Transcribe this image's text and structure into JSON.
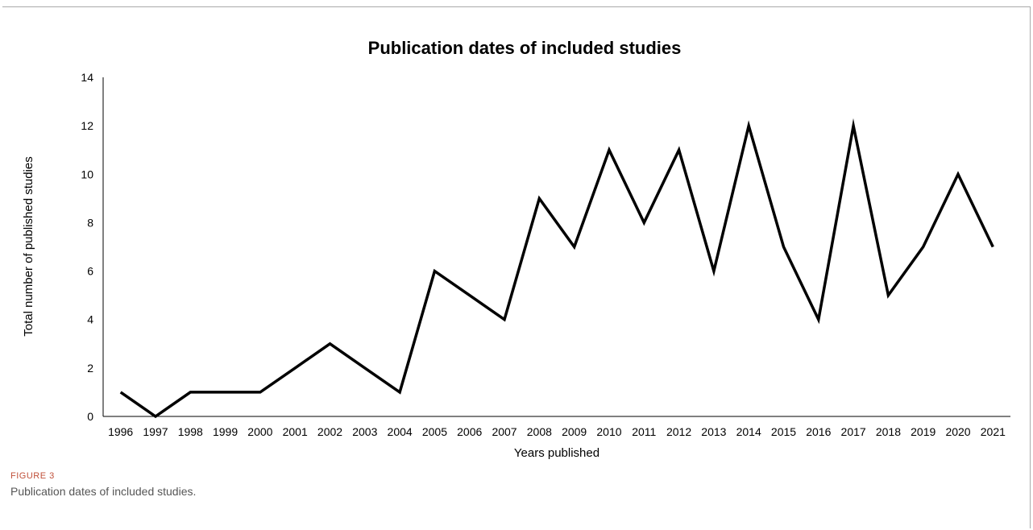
{
  "chart_data": {
    "type": "line",
    "title": "Publication dates of included studies",
    "xlabel": "Years published",
    "ylabel": "Total number of published studies",
    "ylim": [
      0,
      14
    ],
    "yticks": [
      0,
      2,
      4,
      6,
      8,
      10,
      12,
      14
    ],
    "grid": false,
    "legend": "none",
    "line_color": "#000000",
    "categories": [
      "1996",
      "1997",
      "1998",
      "1999",
      "2000",
      "2001",
      "2002",
      "2003",
      "2004",
      "2005",
      "2006",
      "2007",
      "2008",
      "2009",
      "2010",
      "2011",
      "2012",
      "2013",
      "2014",
      "2015",
      "2016",
      "2017",
      "2018",
      "2019",
      "2020",
      "2021"
    ],
    "values": [
      1,
      0,
      1,
      1,
      1,
      2,
      3,
      2,
      1,
      6,
      5,
      4,
      9,
      7,
      11,
      8,
      11,
      6,
      12,
      7,
      4,
      12,
      5,
      7,
      10,
      7
    ]
  },
  "figure": {
    "label": "FIGURE 3",
    "caption": "Publication dates of included studies."
  }
}
